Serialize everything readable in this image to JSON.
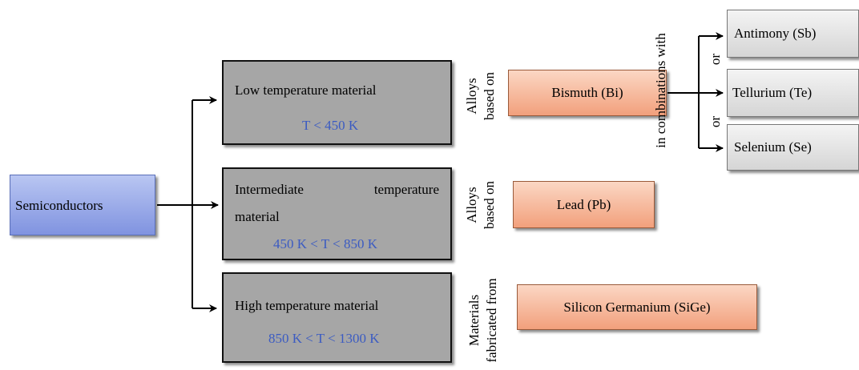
{
  "root": {
    "label": "Semiconductors"
  },
  "categories": [
    {
      "title": "Low temperature material",
      "range": "T < 450 K"
    },
    {
      "title_line1_left": "Intermediate",
      "title_line1_right": "temperature",
      "title_line2": "material",
      "range": "450 K < T < 850 K"
    },
    {
      "title": "High temperature material",
      "range": "850 K < T < 1300 K"
    }
  ],
  "relations": [
    {
      "line1": "Alloys",
      "line2": "based on"
    },
    {
      "line1": "Alloys",
      "line2": "based on"
    },
    {
      "line1": "Materials",
      "line2": "fabricated from"
    }
  ],
  "bases": [
    "Bismuth (Bi)",
    "Lead (Pb)",
    "Silicon Germanium (SiGe)"
  ],
  "combination_label": "in combinations with",
  "elements": [
    "Antimony (Sb)",
    "Tellurium (Te)",
    "Selenium (Se)"
  ],
  "or_labels": [
    "or",
    "or"
  ],
  "colors": {
    "root_fill": "#8e9fe6",
    "category_fill": "#a6a6a6",
    "base_fill": "#f5b393",
    "element_fill": "#e0e0e0",
    "range_text": "#3b5bc2"
  }
}
